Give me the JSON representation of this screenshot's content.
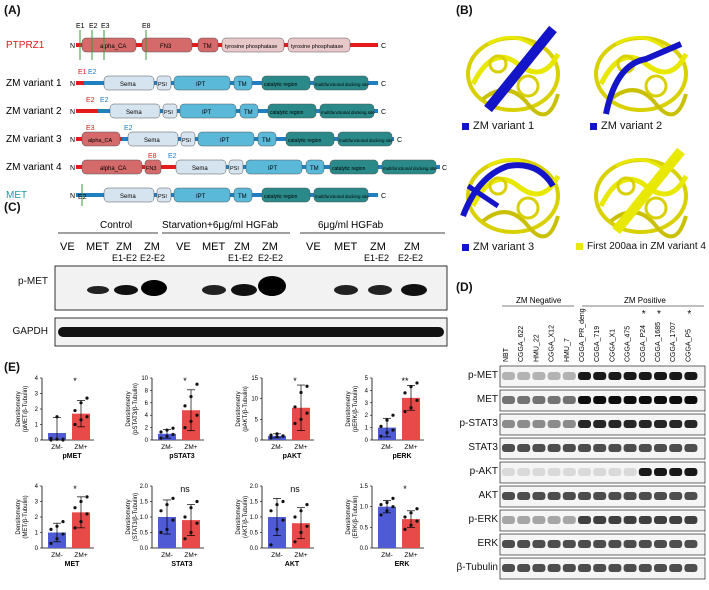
{
  "panels": {
    "A": {
      "label": "(A)",
      "rows": [
        {
          "name": "PTPRZ1",
          "color": "#e41a1c",
          "exon_marks": [
            "E1",
            "E2",
            "E3",
            "E8"
          ],
          "domains": [
            "alpha_CA",
            "FN3",
            "TM",
            "tyrosine phosphatase",
            "tyrosine phosphatase"
          ]
        },
        {
          "name": "ZM variant 1",
          "color": "#111111",
          "exons": [
            "E1",
            "E2"
          ],
          "domains": [
            "Sema",
            "PSI",
            "IPT",
            "TM",
            "catalytic region",
            "multifunctional docking site"
          ]
        },
        {
          "name": "ZM variant 2",
          "color": "#111111",
          "exons": [
            "E2",
            "E2"
          ],
          "domains": [
            "Sema",
            "PSI",
            "IPT",
            "TM",
            "catalytic region",
            "multifunctional docking site"
          ]
        },
        {
          "name": "ZM variant 3",
          "color": "#111111",
          "exons": [
            "E3",
            "E2"
          ],
          "domains": [
            "alpha_CA",
            "Sema",
            "PSI",
            "IPT",
            "TM",
            "catalytic region",
            "multifunctional docking site"
          ]
        },
        {
          "name": "ZM variant 4",
          "color": "#111111",
          "exons": [
            "E8",
            "E2"
          ],
          "domains": [
            "alpha_CA",
            "FN3",
            "Sema",
            "PSI",
            "IPT",
            "TM",
            "catalytic region",
            "multifunctional docking site"
          ]
        },
        {
          "name": "MET",
          "color": "#1a9aa8",
          "exons": [
            "E2"
          ],
          "domains": [
            "Sema",
            "PSI",
            "IPT",
            "TM",
            "catalytic region",
            "multifunctional docking site"
          ]
        }
      ],
      "termini": {
        "n": "N",
        "c": "C"
      }
    },
    "B": {
      "label": "(B)",
      "legends": [
        {
          "text": "ZM variant 1",
          "color": "#1414c8"
        },
        {
          "text": "ZM variant 2",
          "color": "#1414c8"
        },
        {
          "text": "ZM variant 3",
          "color": "#1414c8"
        },
        {
          "text": "First 200aa in ZM variant 4",
          "color": "#e8e800"
        }
      ]
    },
    "C": {
      "label": "(C)",
      "groups": [
        "Control",
        "Starvation+6μg/ml HGFab",
        "6μg/ml HGFab"
      ],
      "lanes": [
        {
          "l1": "VE",
          "l2": ""
        },
        {
          "l1": "MET",
          "l2": ""
        },
        {
          "l1": "ZM",
          "l2": "E1-E2"
        },
        {
          "l1": "ZM",
          "l2": "E2-E2"
        }
      ],
      "rows": [
        "p-MET",
        "GAPDH"
      ]
    },
    "D": {
      "label": "(D)",
      "groups": [
        "ZM Negative",
        "ZM Positive"
      ],
      "samples": [
        "NBT",
        "CGGA_622",
        "HMU_22",
        "CGGA_X12",
        "HMU_7",
        "CGGA_PR_deng",
        "CGGA_719",
        "CGGA_X1",
        "CGGA_475",
        "CGGA_P24",
        "CGGA_1685",
        "CGGA_1707",
        "CGGA_P5"
      ],
      "star": "*",
      "rows": [
        "p-MET",
        "MET",
        "p-STAT3",
        "STAT3",
        "p-AKT",
        "AKT",
        "p-ERK",
        "ERK",
        "β-Tubulin"
      ]
    },
    "E": {
      "label": "(E)",
      "plots": [
        {
          "ylabel_top": "Densitometry",
          "ylabel_bot": "(pMET/β-Tubulin)",
          "xlabel": "pMET",
          "sig": "*",
          "ymax": 4,
          "yticks": [
            "0",
            "1",
            "2",
            "3",
            "4"
          ],
          "groups": [
            {
              "name": "ZM-",
              "mean": 0.45,
              "sd": 1.0,
              "points": [
                0.0,
                0.05,
                0.0,
                0.1,
                1.5,
                0.05
              ]
            },
            {
              "name": "ZM+",
              "mean": 1.7,
              "sd": 0.85,
              "points": [
                1.0,
                1.3,
                1.5,
                1.9,
                2.4,
                2.7
              ]
            }
          ]
        },
        {
          "ylabel_top": "Densitometry",
          "ylabel_bot": "(pSTAT3/β-Tubulin)",
          "xlabel": "pSTAT3",
          "sig": "*",
          "ymax": 10,
          "yticks": [
            "0",
            "2",
            "4",
            "6",
            "8",
            "10"
          ],
          "groups": [
            {
              "name": "ZM-",
              "mean": 1.0,
              "sd": 0.7,
              "points": [
                0.3,
                0.6,
                0.9,
                1.3,
                1.6,
                1.9
              ]
            },
            {
              "name": "ZM+",
              "mean": 4.8,
              "sd": 3.3,
              "points": [
                2.0,
                3.0,
                4.0,
                5.5,
                7.0,
                9.0
              ]
            }
          ]
        },
        {
          "ylabel_top": "Densitometry",
          "ylabel_bot": "(pAKT/β-Tubulin)",
          "xlabel": "pAKT",
          "sig": "*",
          "ymax": 15,
          "yticks": [
            "0",
            "5",
            "10",
            "15"
          ],
          "groups": [
            {
              "name": "ZM-",
              "mean": 1.0,
              "sd": 0.5,
              "points": [
                0.5,
                0.8,
                1.0,
                1.2,
                1.5,
                0.9
              ]
            },
            {
              "name": "ZM+",
              "mean": 7.8,
              "sd": 5.5,
              "points": [
                4.0,
                5.0,
                6.5,
                8.0,
                11.5,
                13.0
              ]
            }
          ]
        },
        {
          "ylabel_top": "Densitometry",
          "ylabel_bot": "(pERK/β-Tubulin)",
          "xlabel": "pERK",
          "sig": "**",
          "ymax": 5,
          "yticks": [
            "0",
            "1",
            "2",
            "3",
            "4",
            "5"
          ],
          "groups": [
            {
              "name": "ZM-",
              "mean": 1.0,
              "sd": 0.75,
              "points": [
                0.3,
                0.6,
                0.8,
                1.1,
                1.6,
                2.0
              ]
            },
            {
              "name": "ZM+",
              "mean": 3.4,
              "sd": 1.0,
              "points": [
                2.3,
                2.6,
                3.2,
                3.8,
                4.3,
                4.6
              ]
            }
          ]
        },
        {
          "ylabel_top": "Densitometry",
          "ylabel_bot": "(MET/β-Tubulin)",
          "xlabel": "MET",
          "sig": "*",
          "ymax": 4,
          "yticks": [
            "0",
            "1",
            "2",
            "3",
            "4"
          ],
          "groups": [
            {
              "name": "ZM-",
              "mean": 1.0,
              "sd": 0.6,
              "points": [
                0.3,
                0.6,
                0.9,
                1.2,
                1.4,
                1.7
              ]
            },
            {
              "name": "ZM+",
              "mean": 2.3,
              "sd": 1.0,
              "points": [
                1.3,
                1.7,
                2.2,
                2.6,
                3.0,
                3.3
              ]
            }
          ]
        },
        {
          "ylabel_top": "Densitometry",
          "ylabel_bot": "(STAT3/β-Tubulin)",
          "xlabel": "STAT3",
          "sig": "ns",
          "ymax": 2,
          "yticks": [
            "0.0",
            "0.5",
            "1.0",
            "1.5",
            "2.0"
          ],
          "groups": [
            {
              "name": "ZM-",
              "mean": 1.0,
              "sd": 0.55,
              "points": [
                0.5,
                0.6,
                0.9,
                1.2,
                1.4,
                1.6
              ]
            },
            {
              "name": "ZM+",
              "mean": 0.9,
              "sd": 0.5,
              "points": [
                0.3,
                0.5,
                0.8,
                1.0,
                1.3,
                1.5
              ]
            }
          ]
        },
        {
          "ylabel_top": "Densitometry",
          "ylabel_bot": "(AKT/β-Tubulin)",
          "xlabel": "AKT",
          "sig": "ns",
          "ymax": 2,
          "yticks": [
            "0.0",
            "0.5",
            "1.0",
            "1.5",
            "2.0"
          ],
          "groups": [
            {
              "name": "ZM-",
              "mean": 1.0,
              "sd": 0.6,
              "points": [
                0.1,
                0.6,
                0.9,
                1.2,
                1.4,
                1.5
              ]
            },
            {
              "name": "ZM+",
              "mean": 0.8,
              "sd": 0.5,
              "points": [
                0.2,
                0.5,
                0.7,
                1.0,
                1.2,
                1.4
              ]
            }
          ]
        },
        {
          "ylabel_top": "Densitometry",
          "ylabel_bot": "(ERK/β-Tubulin)",
          "xlabel": "ERK",
          "sig": "*",
          "ymax": 1.5,
          "yticks": [
            "0.0",
            "0.5",
            "1.0",
            "1.5"
          ],
          "groups": [
            {
              "name": "ZM-",
              "mean": 1.0,
              "sd": 0.15,
              "points": [
                0.8,
                0.9,
                1.0,
                1.05,
                1.1,
                1.2
              ]
            },
            {
              "name": "ZM+",
              "mean": 0.7,
              "sd": 0.2,
              "points": [
                0.45,
                0.55,
                0.65,
                0.75,
                0.85,
                0.95
              ]
            }
          ]
        }
      ]
    }
  },
  "colors": {
    "zm_neg": "#4f5bd5",
    "zm_pos": "#e84a4a",
    "dot": "#111111",
    "blue_helix": "#1414c8",
    "yellow_helix": "#e8e800"
  }
}
